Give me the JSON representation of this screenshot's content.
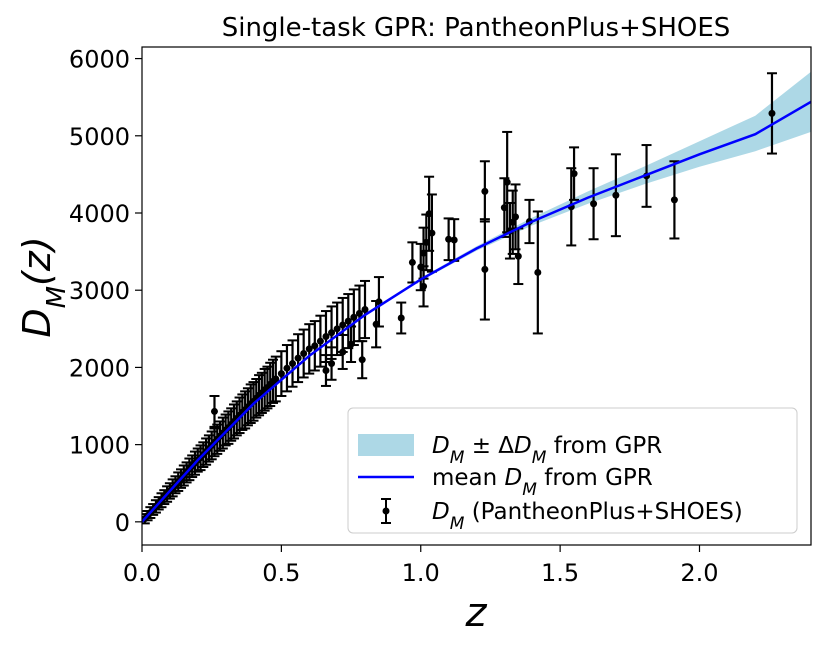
{
  "chart_data": {
    "type": "scatter",
    "title": "Single-task GPR: PantheonPlus+SHOES",
    "xlabel": "z",
    "ylabel": "D_M(z)",
    "xlim": [
      0.0,
      2.4
    ],
    "ylim": [
      -300,
      6150
    ],
    "xticks": [
      0.0,
      0.5,
      1.0,
      1.5,
      2.0
    ],
    "xtick_labels": [
      "0.0",
      "0.5",
      "1.0",
      "1.5",
      "2.0"
    ],
    "yticks": [
      0,
      1000,
      2000,
      3000,
      4000,
      5000,
      6000
    ],
    "ytick_labels": [
      "0",
      "1000",
      "2000",
      "3000",
      "4000",
      "5000",
      "6000"
    ],
    "grid": false,
    "legend_position": "lower-right",
    "colors": {
      "band": "#add8e6",
      "mean": "#0000ff",
      "points": "#000000"
    },
    "legend": [
      {
        "key": "band",
        "label": "D_M ± ΔD_M from GPR"
      },
      {
        "key": "mean",
        "label": "mean D_M from GPR"
      },
      {
        "key": "data",
        "label": "D_M (PantheonPlus+SHOES)"
      }
    ],
    "series": [
      {
        "name": "D_M ± ΔD_M from GPR",
        "kind": "band",
        "x": [
          0.0,
          0.2,
          0.4,
          0.6,
          0.8,
          1.0,
          1.2,
          1.4,
          1.6,
          1.8,
          2.0,
          2.2,
          2.4
        ],
        "lower": [
          0,
          800,
          1530,
          2150,
          2680,
          3120,
          3510,
          3840,
          4120,
          4370,
          4600,
          4800,
          5050
        ],
        "upper": [
          0,
          800,
          1530,
          2150,
          2680,
          3160,
          3570,
          3940,
          4280,
          4600,
          4930,
          5260,
          5830
        ]
      },
      {
        "name": "mean D_M from GPR",
        "kind": "line",
        "x": [
          0.0,
          0.2,
          0.4,
          0.6,
          0.8,
          1.0,
          1.2,
          1.4,
          1.6,
          1.8,
          2.0,
          2.2,
          2.4
        ],
        "y": [
          0,
          800,
          1530,
          2150,
          2680,
          3140,
          3540,
          3890,
          4200,
          4480,
          4760,
          5020,
          5440
        ]
      },
      {
        "name": "D_M (PantheonPlus+SHOES)",
        "kind": "errorbar",
        "points": [
          [
            0.01,
            40,
            60
          ],
          [
            0.02,
            80,
            60
          ],
          [
            0.03,
            120,
            70
          ],
          [
            0.04,
            160,
            70
          ],
          [
            0.05,
            200,
            80
          ],
          [
            0.06,
            240,
            80
          ],
          [
            0.07,
            280,
            90
          ],
          [
            0.08,
            320,
            90
          ],
          [
            0.09,
            360,
            100
          ],
          [
            0.1,
            400,
            100
          ],
          [
            0.11,
            440,
            110
          ],
          [
            0.12,
            480,
            110
          ],
          [
            0.13,
            520,
            120
          ],
          [
            0.14,
            560,
            120
          ],
          [
            0.15,
            600,
            130
          ],
          [
            0.16,
            640,
            130
          ],
          [
            0.17,
            680,
            140
          ],
          [
            0.18,
            720,
            140
          ],
          [
            0.19,
            760,
            150
          ],
          [
            0.2,
            800,
            150
          ],
          [
            0.21,
            830,
            160
          ],
          [
            0.22,
            870,
            160
          ],
          [
            0.23,
            910,
            170
          ],
          [
            0.24,
            950,
            170
          ],
          [
            0.25,
            990,
            180
          ],
          [
            0.26,
            1430,
            200
          ],
          [
            0.26,
            1030,
            180
          ],
          [
            0.27,
            1070,
            190
          ],
          [
            0.28,
            1110,
            190
          ],
          [
            0.29,
            1150,
            200
          ],
          [
            0.3,
            1190,
            200
          ],
          [
            0.31,
            1220,
            210
          ],
          [
            0.32,
            1260,
            210
          ],
          [
            0.33,
            1300,
            220
          ],
          [
            0.34,
            1340,
            220
          ],
          [
            0.35,
            1380,
            230
          ],
          [
            0.36,
            1420,
            230
          ],
          [
            0.37,
            1450,
            240
          ],
          [
            0.38,
            1490,
            240
          ],
          [
            0.39,
            1530,
            250
          ],
          [
            0.4,
            1560,
            250
          ],
          [
            0.41,
            1600,
            250
          ],
          [
            0.42,
            1640,
            260
          ],
          [
            0.43,
            1670,
            260
          ],
          [
            0.44,
            1710,
            270
          ],
          [
            0.45,
            1740,
            270
          ],
          [
            0.46,
            1780,
            280
          ],
          [
            0.47,
            1820,
            280
          ],
          [
            0.48,
            1850,
            290
          ],
          [
            0.5,
            1920,
            290
          ],
          [
            0.52,
            1990,
            300
          ],
          [
            0.54,
            2050,
            300
          ],
          [
            0.56,
            2120,
            310
          ],
          [
            0.58,
            2180,
            310
          ],
          [
            0.6,
            2240,
            320
          ],
          [
            0.62,
            2280,
            320
          ],
          [
            0.64,
            2340,
            330
          ],
          [
            0.66,
            2400,
            330
          ],
          [
            0.68,
            2450,
            340
          ],
          [
            0.7,
            2500,
            340
          ],
          [
            0.72,
            2550,
            350
          ],
          [
            0.74,
            2600,
            350
          ],
          [
            0.76,
            2650,
            360
          ],
          [
            0.78,
            2700,
            360
          ],
          [
            0.8,
            2750,
            370
          ],
          [
            0.66,
            1960,
            200
          ],
          [
            0.68,
            2050,
            210
          ],
          [
            0.72,
            2200,
            220
          ],
          [
            0.75,
            2300,
            230
          ],
          [
            0.79,
            2100,
            240
          ],
          [
            0.84,
            2560,
            300
          ],
          [
            0.85,
            2850,
            320
          ],
          [
            0.93,
            2640,
            200
          ],
          [
            0.97,
            3360,
            260
          ],
          [
            1.0,
            3300,
            300
          ],
          [
            1.01,
            3480,
            330
          ],
          [
            1.01,
            3050,
            260
          ],
          [
            1.02,
            3620,
            360
          ],
          [
            1.03,
            3990,
            480
          ],
          [
            1.04,
            3740,
            500
          ],
          [
            1.1,
            3660,
            270
          ],
          [
            1.12,
            3650,
            270
          ],
          [
            1.23,
            4280,
            390
          ],
          [
            1.23,
            3270,
            650
          ],
          [
            1.3,
            4070,
            380
          ],
          [
            1.31,
            4400,
            650
          ],
          [
            1.32,
            3770,
            360
          ],
          [
            1.33,
            3880,
            410
          ],
          [
            1.34,
            3950,
            420
          ],
          [
            1.35,
            3440,
            360
          ],
          [
            1.39,
            3890,
            280
          ],
          [
            1.42,
            3230,
            790
          ],
          [
            1.54,
            4080,
            500
          ],
          [
            1.55,
            4510,
            340
          ],
          [
            1.62,
            4120,
            460
          ],
          [
            1.7,
            4230,
            530
          ],
          [
            1.81,
            4480,
            400
          ],
          [
            1.91,
            4170,
            500
          ],
          [
            2.26,
            5290,
            520
          ]
        ]
      }
    ]
  }
}
